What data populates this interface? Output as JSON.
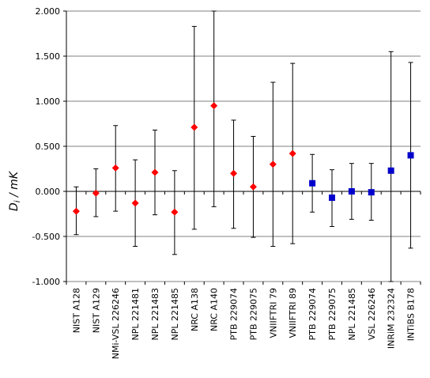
{
  "chart_data": {
    "type": "scatter",
    "ylabel": "D_i / mK",
    "ylabel_main": "D",
    "ylabel_sub": "i",
    "ylabel_unit": " / mK",
    "ylim": [
      -1.0,
      2.0
    ],
    "yticks": [
      -1.0,
      -0.5,
      0.0,
      0.5,
      1.0,
      1.5,
      2.0
    ],
    "ytick_labels": [
      "-1.000",
      "-0.500",
      "0.000",
      "0.500",
      "1.000",
      "1.500",
      "2.000"
    ],
    "grid": true,
    "categories": [
      "NIST A128",
      "NIST A129",
      "NMi-VSL 226246",
      "NPL 221481",
      "NPL 221483",
      "NPL 221485",
      "NRC A138",
      "NRC A140",
      "PTB 229074",
      "PTB 229075",
      "VNIIFTRI 79",
      "VNIIFTRI 89",
      "PTB 229074",
      "PTB 229075",
      "NPL 221485",
      "VSL 226246",
      "INRiM 232324",
      "INTiBS B178"
    ],
    "series": [
      {
        "marker": "diamond",
        "color": "#ff0000",
        "points": [
          {
            "x": 0,
            "y": -0.22,
            "err_low": -0.48,
            "err_high": 0.05
          },
          {
            "x": 1,
            "y": -0.02,
            "err_low": -0.28,
            "err_high": 0.25
          },
          {
            "x": 2,
            "y": 0.26,
            "err_low": -0.22,
            "err_high": 0.73
          },
          {
            "x": 3,
            "y": -0.13,
            "err_low": -0.61,
            "err_high": 0.35
          },
          {
            "x": 4,
            "y": 0.21,
            "err_low": -0.26,
            "err_high": 0.68
          },
          {
            "x": 5,
            "y": -0.23,
            "err_low": -0.7,
            "err_high": 0.23
          },
          {
            "x": 6,
            "y": 0.71,
            "err_low": -0.42,
            "err_high": 1.83
          },
          {
            "x": 7,
            "y": 0.95,
            "err_low": -0.17,
            "err_high": 2.0
          },
          {
            "x": 8,
            "y": 0.2,
            "err_low": -0.41,
            "err_high": 0.79
          },
          {
            "x": 9,
            "y": 0.05,
            "err_low": -0.51,
            "err_high": 0.61
          },
          {
            "x": 10,
            "y": 0.3,
            "err_low": -0.61,
            "err_high": 1.21
          },
          {
            "x": 11,
            "y": 0.42,
            "err_low": -0.58,
            "err_high": 1.42
          }
        ]
      },
      {
        "marker": "square",
        "color": "#0000cc",
        "points": [
          {
            "x": 12,
            "y": 0.09,
            "err_low": -0.23,
            "err_high": 0.41
          },
          {
            "x": 13,
            "y": -0.07,
            "err_low": -0.39,
            "err_high": 0.24
          },
          {
            "x": 14,
            "y": 0.0,
            "err_low": -0.31,
            "err_high": 0.31
          },
          {
            "x": 15,
            "y": -0.01,
            "err_low": -0.32,
            "err_high": 0.31
          },
          {
            "x": 16,
            "y": 0.23,
            "err_low": -1.0,
            "err_high": 1.55
          },
          {
            "x": 17,
            "y": 0.4,
            "err_low": -0.63,
            "err_high": 1.43
          }
        ]
      }
    ]
  }
}
